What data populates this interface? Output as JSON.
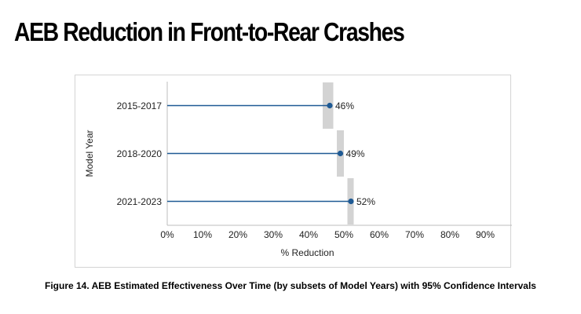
{
  "page": {
    "title": "AEB Reduction in Front-to-Rear Crashes",
    "caption": "Figure 14. AEB Estimated Effectiveness Over Time (by subsets of Model Years) with 95% Confidence Intervals"
  },
  "colors": {
    "series": "#1f5a94",
    "ci_band": "#d3d3d3",
    "axis": "#bdbdbd",
    "text": "#222222"
  },
  "chart_data": {
    "type": "dot-range",
    "orientation": "horizontal",
    "categories": [
      "2015-2017",
      "2018-2020",
      "2021-2023"
    ],
    "values": [
      46,
      49,
      52
    ],
    "value_labels": [
      "46%",
      "49%",
      "52%"
    ],
    "ci_low": [
      44,
      48,
      51
    ],
    "ci_high": [
      47,
      50,
      52
    ],
    "xlabel": "% Reduction",
    "ylabel": "Model Year",
    "xlim": [
      0,
      90
    ],
    "xticks": [
      0,
      10,
      20,
      30,
      40,
      50,
      60,
      70,
      80,
      90
    ],
    "xtick_labels": [
      "0%",
      "10%",
      "20%",
      "30%",
      "40%",
      "50%",
      "60%",
      "70%",
      "80%",
      "90%"
    ],
    "grid": false,
    "legend": "none"
  }
}
